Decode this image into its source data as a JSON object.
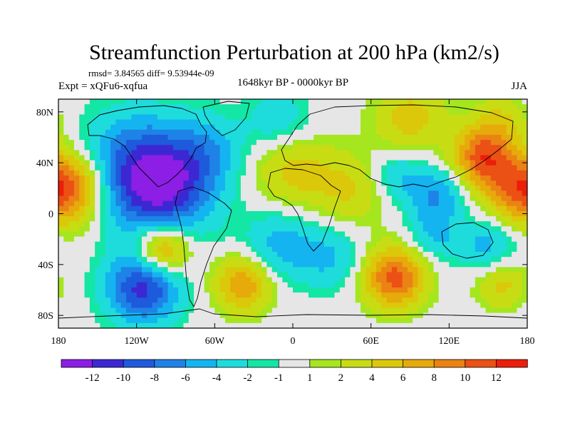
{
  "chart_data": {
    "type": "heatmap",
    "title": "Streamfunction Perturbation at 200 hPa (km2/s)",
    "stats_line": "rmsd= 3.84565 diff= 9.53944e-09",
    "experiment": "Expt = xQFu6-xqfua",
    "period": "1648kyr BP - 0000kyr BP",
    "season": "JJA",
    "projection": "cylindrical equidistant",
    "x_range": [
      -180,
      180
    ],
    "y_range": [
      -90,
      90
    ],
    "x_ticks": [
      {
        "value": -180,
        "label": "180"
      },
      {
        "value": -120,
        "label": "120W"
      },
      {
        "value": -60,
        "label": "60W"
      },
      {
        "value": 0,
        "label": "0"
      },
      {
        "value": 60,
        "label": "60E"
      },
      {
        "value": 120,
        "label": "120E"
      },
      {
        "value": 180,
        "label": "180"
      }
    ],
    "y_ticks": [
      {
        "value": 80,
        "label": "80N"
      },
      {
        "value": 40,
        "label": "40N"
      },
      {
        "value": 0,
        "label": "0"
      },
      {
        "value": -40,
        "label": "40S"
      },
      {
        "value": -80,
        "label": "80S"
      }
    ],
    "colorbar": {
      "colors": [
        "#8c1ee6",
        "#3c28d2",
        "#1e5adc",
        "#1e82e6",
        "#14b4f0",
        "#1edcdc",
        "#14e6a5",
        "#e6e6e6",
        "#a5e61e",
        "#c8dc14",
        "#dcc80a",
        "#e6aa0a",
        "#eb8214",
        "#eb5014",
        "#eb1e0a"
      ],
      "boundary_labels": [
        "-12",
        "-10",
        "-8",
        "-6",
        "-4",
        "-2",
        "-1",
        "1",
        "2",
        "4",
        "6",
        "8",
        "10",
        "12"
      ],
      "boundaries": [
        -12,
        -10,
        -8,
        -6,
        -4,
        -2,
        -1,
        1,
        2,
        4,
        6,
        8,
        10,
        12
      ]
    },
    "field_centers": [
      {
        "lon": -100,
        "lat": 20,
        "value": -11,
        "spread": 28
      },
      {
        "lon": -125,
        "lat": 40,
        "value": -6,
        "spread": 30
      },
      {
        "lon": -65,
        "lat": 50,
        "value": -4,
        "spread": 20
      },
      {
        "lon": -170,
        "lat": 20,
        "value": 9,
        "spread": 20
      },
      {
        "lon": 170,
        "lat": 20,
        "value": 6,
        "spread": 20
      },
      {
        "lon": -100,
        "lat": -28,
        "value": 10,
        "spread": 15
      },
      {
        "lon": -115,
        "lat": -58,
        "value": -11,
        "spread": 20
      },
      {
        "lon": -38,
        "lat": -55,
        "value": 8,
        "spread": 16
      },
      {
        "lon": -10,
        "lat": -25,
        "value": -5,
        "spread": 20
      },
      {
        "lon": 30,
        "lat": -35,
        "value": -4,
        "spread": 18
      },
      {
        "lon": 78,
        "lat": -50,
        "value": 11,
        "spread": 17
      },
      {
        "lon": 108,
        "lat": -18,
        "value": -4,
        "spread": 14
      },
      {
        "lon": 150,
        "lat": -25,
        "value": -5,
        "spread": 16
      },
      {
        "lon": 160,
        "lat": -55,
        "value": 5,
        "spread": 14
      },
      {
        "lon": 0,
        "lat": 35,
        "value": 5,
        "spread": 22
      },
      {
        "lon": 45,
        "lat": 18,
        "value": 4,
        "spread": 20
      },
      {
        "lon": 110,
        "lat": 15,
        "value": -6,
        "spread": 16
      },
      {
        "lon": 80,
        "lat": 30,
        "value": -4,
        "spread": 14
      },
      {
        "lon": 145,
        "lat": 45,
        "value": 10,
        "spread": 16
      },
      {
        "lon": 90,
        "lat": 75,
        "value": 5,
        "spread": 20
      },
      {
        "lon": -10,
        "lat": 72,
        "value": -4,
        "spread": 18
      },
      {
        "lon": 160,
        "lat": 72,
        "value": 4,
        "spread": 15
      }
    ]
  }
}
